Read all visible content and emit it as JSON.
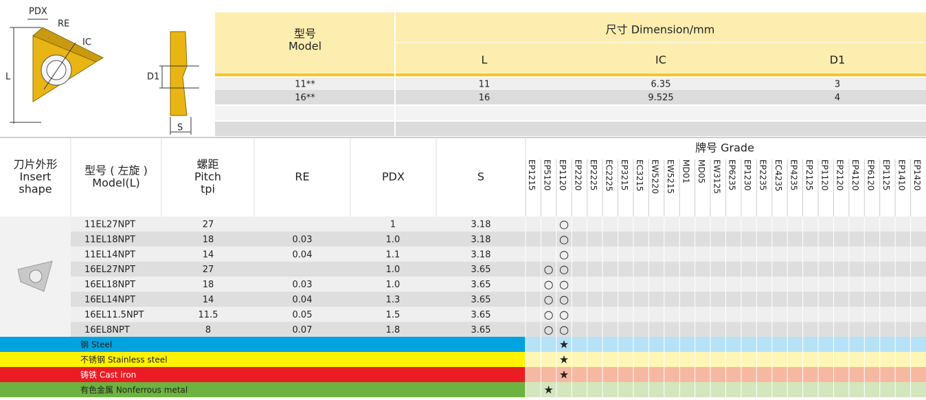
{
  "drawing": {
    "labels": [
      "PDX",
      "RE",
      "IC",
      "L",
      "D1",
      "S"
    ]
  },
  "dimension_table": {
    "model_header": [
      "型号",
      "Model"
    ],
    "dimension_header": "尺寸 Dimension/mm",
    "columns": [
      "L",
      "IC",
      "D1"
    ],
    "rows": [
      [
        "11**",
        "11",
        "6.35",
        "3"
      ],
      [
        "16**",
        "16",
        "9.525",
        "4"
      ]
    ]
  },
  "grade_table": {
    "headers": [
      [
        "刀片外形",
        "Insert",
        "shape"
      ],
      [
        "型号 ( 左旋 )",
        "Model(L)"
      ],
      [
        "螺距",
        "Pitch",
        "tpi"
      ],
      [
        "RE"
      ],
      [
        "PDX"
      ],
      [
        "S"
      ]
    ],
    "grade_header": "牌号 Grade",
    "grades": [
      "EP1215",
      "EP5120",
      "EP1120",
      "EP2220",
      "EP2225",
      "EC2225",
      "EP3215",
      "EC3215",
      "EW5220",
      "EW5215",
      "MD01",
      "MD05",
      "EW3125",
      "EP6235",
      "EP1230",
      "EP2235",
      "EC4235",
      "EP4235",
      "EP2125",
      "EP1120",
      "EP2120",
      "EP4120",
      "EP6120",
      "EP1125",
      "EP1410",
      "EP1420"
    ],
    "rows": [
      {
        "cells": [
          "11EL27NPT",
          "27",
          null,
          "1",
          "3.18"
        ],
        "marks": [
          null,
          null,
          "○",
          null,
          null,
          null,
          null,
          null,
          null,
          null,
          null,
          null,
          null,
          null,
          null,
          null,
          null,
          null,
          null,
          null,
          null,
          null,
          null,
          null,
          null,
          null
        ]
      },
      {
        "cells": [
          "11EL18NPT",
          "18",
          "0.03",
          "1.0",
          "3.18"
        ],
        "marks": [
          null,
          null,
          "○",
          null,
          null,
          null,
          null,
          null,
          null,
          null,
          null,
          null,
          null,
          null,
          null,
          null,
          null,
          null,
          null,
          null,
          null,
          null,
          null,
          null,
          null,
          null
        ]
      },
      {
        "cells": [
          "11EL14NPT",
          "14",
          "0.04",
          "1.1",
          "3.18"
        ],
        "marks": [
          null,
          null,
          "○",
          null,
          null,
          null,
          null,
          null,
          null,
          null,
          null,
          null,
          null,
          null,
          null,
          null,
          null,
          null,
          null,
          null,
          null,
          null,
          null,
          null,
          null,
          null
        ]
      },
      {
        "cells": [
          "16EL27NPT",
          "27",
          null,
          "1.0",
          "3.65"
        ],
        "marks": [
          null,
          "○",
          "○",
          null,
          null,
          null,
          null,
          null,
          null,
          null,
          null,
          null,
          null,
          null,
          null,
          null,
          null,
          null,
          null,
          null,
          null,
          null,
          null,
          null,
          null,
          null
        ]
      },
      {
        "cells": [
          "16EL18NPT",
          "18",
          "0.03",
          "1.0",
          "3.65"
        ],
        "marks": [
          null,
          "○",
          "○",
          null,
          null,
          null,
          null,
          null,
          null,
          null,
          null,
          null,
          null,
          null,
          null,
          null,
          null,
          null,
          null,
          null,
          null,
          null,
          null,
          null,
          null,
          null
        ]
      },
      {
        "cells": [
          "16EL14NPT",
          "14",
          "0.04",
          "1.3",
          "3.65"
        ],
        "marks": [
          null,
          "○",
          "○",
          null,
          null,
          null,
          null,
          null,
          null,
          null,
          null,
          null,
          null,
          null,
          null,
          null,
          null,
          null,
          null,
          null,
          null,
          null,
          null,
          null,
          null,
          null
        ]
      },
      {
        "cells": [
          "16EL11.5NPT",
          "11.5",
          "0.05",
          "1.5",
          "3.65"
        ],
        "marks": [
          null,
          "○",
          "○",
          null,
          null,
          null,
          null,
          null,
          null,
          null,
          null,
          null,
          null,
          null,
          null,
          null,
          null,
          null,
          null,
          null,
          null,
          null,
          null,
          null,
          null,
          null
        ]
      },
      {
        "cells": [
          "16EL8NPT",
          "8",
          "0.07",
          "1.8",
          "3.65"
        ],
        "marks": [
          null,
          "○",
          "○",
          null,
          null,
          null,
          null,
          null,
          null,
          null,
          null,
          null,
          null,
          null,
          null,
          null,
          null,
          null,
          null,
          null,
          null,
          null,
          null,
          null,
          null,
          null
        ]
      }
    ],
    "materials": [
      {
        "name": "钢 Steel",
        "color": "#00a3e0",
        "light_color": "#b5e2f7",
        "marks": [
          null,
          null,
          "★",
          null,
          null,
          null,
          null,
          null,
          null,
          null,
          null,
          null,
          null,
          null,
          null,
          null,
          null,
          null,
          null,
          null,
          null,
          null,
          null,
          null,
          null,
          null
        ]
      },
      {
        "name": "不锈钢 Stainless steel",
        "color": "#fff200",
        "light_color": "#fdf6b6",
        "marks": [
          null,
          null,
          "★",
          null,
          null,
          null,
          null,
          null,
          null,
          null,
          null,
          null,
          null,
          null,
          null,
          null,
          null,
          null,
          null,
          null,
          null,
          null,
          null,
          null,
          null,
          null
        ]
      },
      {
        "name": "铸铁 Cast iron",
        "color": "#ec1c24",
        "light_color": "#f7b8a2",
        "marks": [
          null,
          null,
          "★",
          null,
          null,
          null,
          null,
          null,
          null,
          null,
          null,
          null,
          null,
          null,
          null,
          null,
          null,
          null,
          null,
          null,
          null,
          null,
          null,
          null,
          null,
          null
        ]
      },
      {
        "name": "有色金属 Nonferrous metal",
        "color": "#6cb33f",
        "light_color": "#d3e6bd",
        "marks": [
          null,
          "★",
          null,
          null,
          null,
          null,
          null,
          null,
          null,
          null,
          null,
          null,
          null,
          null,
          null,
          null,
          null,
          null,
          null,
          null,
          null,
          null,
          null,
          null,
          null,
          null
        ]
      }
    ]
  }
}
